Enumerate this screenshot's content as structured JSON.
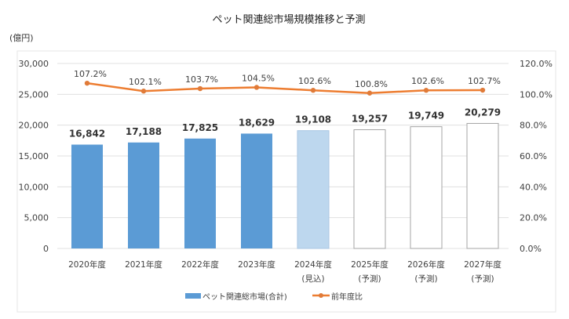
{
  "chart_data": {
    "type": "bar+line",
    "title": "ペット関連総市場規模推移と予測",
    "ylabel": "(億円)",
    "categories": [
      [
        "2020年度",
        ""
      ],
      [
        "2021年度",
        ""
      ],
      [
        "2022年度",
        ""
      ],
      [
        "2023年度",
        ""
      ],
      [
        "2024年度",
        "(見込)"
      ],
      [
        "2025年度",
        "(予測)"
      ],
      [
        "2026年度",
        "(予測)"
      ],
      [
        "2027年度",
        "(予測)"
      ]
    ],
    "series": [
      {
        "name": "ペット関連総市場(合計)",
        "type": "bar",
        "axis": "left",
        "values": [
          16842,
          17188,
          17825,
          18629,
          19108,
          19257,
          19749,
          20279
        ],
        "labels": [
          "16,842",
          "17,188",
          "17,825",
          "18,629",
          "19,108",
          "19,257",
          "19,749",
          "20,279"
        ],
        "status": [
          "actual",
          "actual",
          "actual",
          "actual",
          "estimate",
          "forecast",
          "forecast",
          "forecast"
        ]
      },
      {
        "name": "前年度比",
        "type": "line",
        "axis": "right",
        "values": [
          107.2,
          102.1,
          103.7,
          104.5,
          102.6,
          100.8,
          102.6,
          102.7
        ],
        "labels": [
          "107.2%",
          "102.1%",
          "103.7%",
          "104.5%",
          "102.6%",
          "100.8%",
          "102.6%",
          "102.7%"
        ]
      }
    ],
    "left_axis": {
      "ylim": [
        0,
        30000
      ],
      "ticks": [
        "0",
        "5,000",
        "10,000",
        "15,000",
        "20,000",
        "25,000",
        "30,000"
      ]
    },
    "right_axis": {
      "ylim": [
        0,
        120
      ],
      "ticks": [
        "0.0%",
        "20.0%",
        "40.0%",
        "60.0%",
        "80.0%",
        "100.0%",
        "120.0%"
      ]
    },
    "grid": true,
    "legend": "bottom",
    "colors": {
      "actual": "#5b9bd5",
      "estimate": "#bdd7ee",
      "forecast": "#ffffff",
      "forecast_stroke": "#a6a6a6",
      "line": "#ed7d31",
      "line_marker": "#e07b39",
      "grid": "#e0e0e0",
      "text": "#404040"
    }
  }
}
